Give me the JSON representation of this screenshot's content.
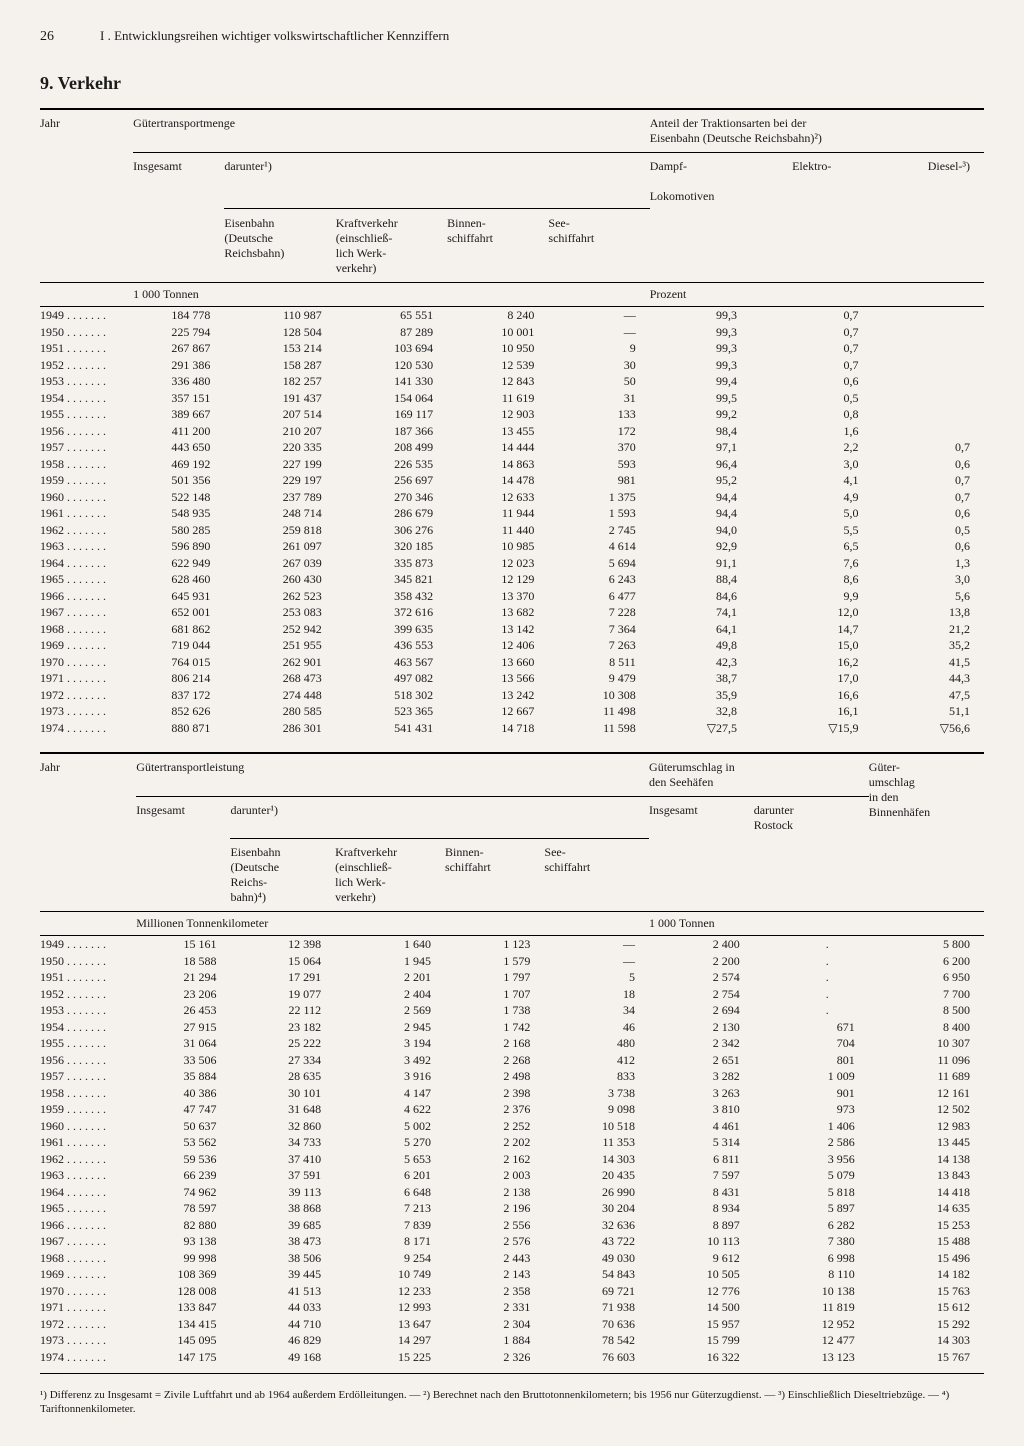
{
  "page_number": "26",
  "running_head": "I . Entwicklungsreihen wichtiger volkswirtschaftlicher Kennziffern",
  "section_heading": "9. Verkehr",
  "labels": {
    "jahr": "Jahr",
    "gt_menge": "Gütertransportmenge",
    "gt_leistung": "Gütertransportleistung",
    "insgesamt": "Insgesamt",
    "darunter": "darunter¹)",
    "eisenbahn": "Eisenbahn\n(Deutsche\nReichsbahn)",
    "eisenbahn4": "Eisenbahn\n(Deutsche\nReichs-\nbahn)⁴)",
    "kraft": "Kraftverkehr\n(einschließ-\nlich Werk-\nverkehr)",
    "binnen": "Binnen-\nschiffahrt",
    "see": "See-\nschiffahrt",
    "traktion": "Anteil der Traktionsarten bei der\nEisenbahn (Deutsche Reichsbahn)²)",
    "dampf": "Dampf-",
    "elektro": "Elektro-",
    "lokomotiven": "Lokomotiven",
    "diesel": "Diesel-³)",
    "umschlag_see": "Güterumschlag in\nden Seehäfen",
    "umschlag_binnen": "Güter-\numschlag\nin den\nBinnenhäfen",
    "dar_rostock": "darunter\nRostock",
    "unit_1000t": "1 000 Tonnen",
    "unit_prozent": "Prozent",
    "unit_mtkm": "Millionen Tonnenkilometer"
  },
  "years": [
    "1949",
    "1950",
    "1951",
    "1952",
    "1953",
    "1954",
    "1955",
    "1956",
    "1957",
    "1958",
    "1959",
    "1960",
    "1961",
    "1962",
    "1963",
    "1964",
    "1965",
    "1966",
    "1967",
    "1968",
    "1969",
    "1970",
    "1971",
    "1972",
    "1973",
    "1974"
  ],
  "year_dots": " . . . . . . .",
  "tableA": {
    "insgesamt": [
      "184 778",
      "225 794",
      "267 867",
      "291 386",
      "336 480",
      "357 151",
      "389 667",
      "411 200",
      "443 650",
      "469 192",
      "501 356",
      "522 148",
      "548 935",
      "580 285",
      "596 890",
      "622 949",
      "628 460",
      "645 931",
      "652 001",
      "681 862",
      "719 044",
      "764 015",
      "806 214",
      "837 172",
      "852 626",
      "880 871"
    ],
    "eisenbahn": [
      "110 987",
      "128 504",
      "153 214",
      "158 287",
      "182 257",
      "191 437",
      "207 514",
      "210 207",
      "220 335",
      "227 199",
      "229 197",
      "237 789",
      "248 714",
      "259 818",
      "261 097",
      "267 039",
      "260 430",
      "262 523",
      "253 083",
      "252 942",
      "251 955",
      "262 901",
      "268 473",
      "274 448",
      "280 585",
      "286 301"
    ],
    "kraft": [
      "65 551",
      "87 289",
      "103 694",
      "120 530",
      "141 330",
      "154 064",
      "169 117",
      "187 366",
      "208 499",
      "226 535",
      "256 697",
      "270 346",
      "286 679",
      "306 276",
      "320 185",
      "335 873",
      "345 821",
      "358 432",
      "372 616",
      "399 635",
      "436 553",
      "463 567",
      "497 082",
      "518 302",
      "523 365",
      "541 431"
    ],
    "binnen": [
      "8 240",
      "10 001",
      "10 950",
      "12 539",
      "12 843",
      "11 619",
      "12 903",
      "13 455",
      "14 444",
      "14 863",
      "14 478",
      "12 633",
      "11 944",
      "11 440",
      "10 985",
      "12 023",
      "12 129",
      "13 370",
      "13 682",
      "13 142",
      "12 406",
      "13 660",
      "13 566",
      "13 242",
      "12 667",
      "14 718"
    ],
    "see": [
      "—",
      "—",
      "9",
      "30",
      "50",
      "31",
      "133",
      "172",
      "370",
      "593",
      "981",
      "1 375",
      "1 593",
      "2 745",
      "4 614",
      "5 694",
      "6 243",
      "6 477",
      "7 228",
      "7 364",
      "7 263",
      "8 511",
      "9 479",
      "10 308",
      "11 498",
      "11 598"
    ],
    "dampf": [
      "99,3",
      "99,3",
      "99,3",
      "99,3",
      "99,4",
      "99,5",
      "99,2",
      "98,4",
      "97,1",
      "96,4",
      "95,2",
      "94,4",
      "94,4",
      "94,0",
      "92,9",
      "91,1",
      "88,4",
      "84,6",
      "74,1",
      "64,1",
      "49,8",
      "42,3",
      "38,7",
      "35,9",
      "32,8",
      "▽27,5"
    ],
    "elektro": [
      "0,7",
      "0,7",
      "0,7",
      "0,7",
      "0,6",
      "0,5",
      "0,8",
      "1,6",
      "2,2",
      "3,0",
      "4,1",
      "4,9",
      "5,0",
      "5,5",
      "6,5",
      "7,6",
      "8,6",
      "9,9",
      "12,0",
      "14,7",
      "15,0",
      "16,2",
      "17,0",
      "16,6",
      "16,1",
      "▽15,9"
    ],
    "diesel": [
      "",
      "",
      "",
      "",
      "",
      "",
      "",
      "",
      "0,7",
      "0,6",
      "0,7",
      "0,7",
      "0,6",
      "0,5",
      "0,6",
      "1,3",
      "3,0",
      "5,6",
      "13,8",
      "21,2",
      "35,2",
      "41,5",
      "44,3",
      "47,5",
      "51,1",
      "▽56,6"
    ]
  },
  "tableB": {
    "insgesamt": [
      "15 161",
      "18 588",
      "21 294",
      "23 206",
      "26 453",
      "27 915",
      "31 064",
      "33 506",
      "35 884",
      "40 386",
      "47 747",
      "50 637",
      "53 562",
      "59 536",
      "66 239",
      "74 962",
      "78 597",
      "82 880",
      "93 138",
      "99 998",
      "108 369",
      "128 008",
      "133 847",
      "134 415",
      "145 095",
      "147 175"
    ],
    "eisenbahn": [
      "12 398",
      "15 064",
      "17 291",
      "19 077",
      "22 112",
      "23 182",
      "25 222",
      "27 334",
      "28 635",
      "30 101",
      "31 648",
      "32 860",
      "34 733",
      "37 410",
      "37 591",
      "39 113",
      "38 868",
      "39 685",
      "38 473",
      "38 506",
      "39 445",
      "41 513",
      "44 033",
      "44 710",
      "46 829",
      "49 168"
    ],
    "kraft": [
      "1 640",
      "1 945",
      "2 201",
      "2 404",
      "2 569",
      "2 945",
      "3 194",
      "3 492",
      "3 916",
      "4 147",
      "4 622",
      "5 002",
      "5 270",
      "5 653",
      "6 201",
      "6 648",
      "7 213",
      "7 839",
      "8 171",
      "9 254",
      "10 749",
      "12 233",
      "12 993",
      "13 647",
      "14 297",
      "15 225"
    ],
    "binnen": [
      "1 123",
      "1 579",
      "1 797",
      "1 707",
      "1 738",
      "1 742",
      "2 168",
      "2 268",
      "2 498",
      "2 398",
      "2 376",
      "2 252",
      "2 202",
      "2 162",
      "2 003",
      "2 138",
      "2 196",
      "2 556",
      "2 576",
      "2 443",
      "2 143",
      "2 358",
      "2 331",
      "2 304",
      "1 884",
      "2 326"
    ],
    "see": [
      "—",
      "—",
      "5",
      "18",
      "34",
      "46",
      "480",
      "412",
      "833",
      "3 738",
      "9 098",
      "10 518",
      "11 353",
      "14 303",
      "20 435",
      "26 990",
      "30 204",
      "32 636",
      "43 722",
      "49 030",
      "54 843",
      "69 721",
      "71 938",
      "70 636",
      "78 542",
      "76 603"
    ],
    "um_see": [
      "2 400",
      "2 200",
      "2 574",
      "2 754",
      "2 694",
      "2 130",
      "2 342",
      "2 651",
      "3 282",
      "3 263",
      "3 810",
      "4 461",
      "5 314",
      "6 811",
      "7 597",
      "8 431",
      "8 934",
      "8 897",
      "10 113",
      "9 612",
      "10 505",
      "12 776",
      "14 500",
      "15 957",
      "15 799",
      "16 322"
    ],
    "rostock": [
      ".",
      ".",
      ".",
      ".",
      ".",
      "671",
      "704",
      "801",
      "1 009",
      "901",
      "973",
      "1 406",
      "2 586",
      "3 956",
      "5 079",
      "5 818",
      "5 897",
      "6 282",
      "7 380",
      "6 998",
      "8 110",
      "10 138",
      "11 819",
      "12 952",
      "12 477",
      "13 123"
    ],
    "um_binnen": [
      "5 800",
      "6 200",
      "6 950",
      "7 700",
      "8 500",
      "8 400",
      "10 307",
      "11 096",
      "11 689",
      "12 161",
      "12 502",
      "12 983",
      "13 445",
      "14 138",
      "13 843",
      "14 418",
      "14 635",
      "15 253",
      "15 488",
      "15 496",
      "14 182",
      "15 763",
      "15 612",
      "15 292",
      "14 303",
      "15 767"
    ]
  },
  "footnotes": "¹) Differenz zu Insgesamt = Zivile Luftfahrt und ab 1964 außerdem Erdölleitungen. — ²) Berechnet nach den Bruttotonnenkilometern; bis 1956 nur Güterzugdienst. — ³) Einschließlich Dieseltriebzüge. — ⁴) Tariftonnenkilometer."
}
